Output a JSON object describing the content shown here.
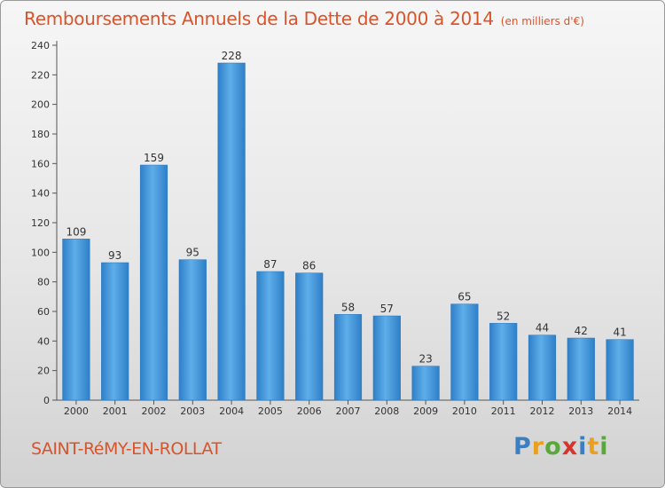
{
  "title": "Remboursements Annuels de la Dette de 2000 à 2014",
  "unit": "(en milliers d'€)",
  "town": "SAINT-RéMY-EN-ROLLAT",
  "logo": {
    "letters": [
      "P",
      "r",
      "o",
      "x",
      "i",
      "t",
      "i"
    ],
    "colors": [
      "#3c7fc1",
      "#e8a020",
      "#5aa83c",
      "#d9342b",
      "#3c7fc1",
      "#e8a020",
      "#5aa83c"
    ]
  },
  "chart_data": {
    "type": "bar",
    "categories": [
      "2000",
      "2001",
      "2002",
      "2003",
      "2004",
      "2005",
      "2006",
      "2007",
      "2008",
      "2009",
      "2010",
      "2011",
      "2012",
      "2013",
      "2014"
    ],
    "values": [
      109,
      93,
      159,
      95,
      228,
      87,
      86,
      58,
      57,
      23,
      65,
      52,
      44,
      42,
      41
    ],
    "yticks": [
      0,
      20,
      40,
      60,
      80,
      100,
      120,
      140,
      160,
      180,
      200,
      220,
      240
    ],
    "ylim": [
      0,
      240
    ],
    "grid": false,
    "bar_color": "#4a9fe0"
  }
}
